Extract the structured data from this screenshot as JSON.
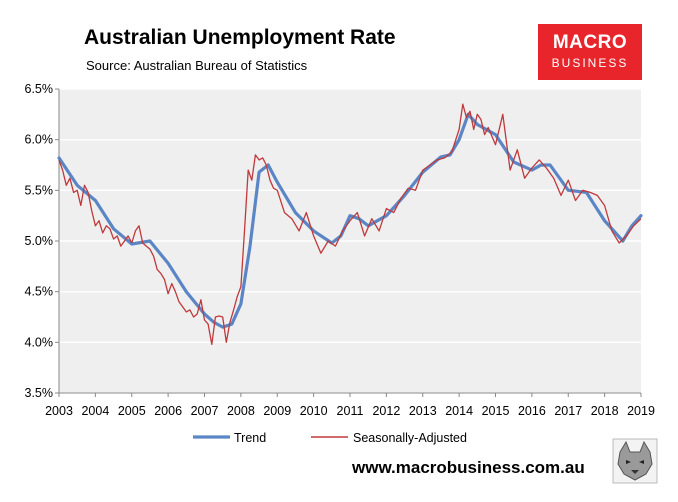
{
  "header": {
    "title": "Australian Unemployment Rate",
    "subtitle": "Source: Australian Bureau of Statistics"
  },
  "logo": {
    "line1": "MACRO",
    "line2": "BUSINESS",
    "color": "#e8252b"
  },
  "footer": {
    "website": "www.macrobusiness.com.au",
    "icon": "wolf-logo-icon"
  },
  "colors": {
    "trend": "#5b86c5",
    "seasonally_adjusted": "#c0393b",
    "plot_bg": "#efefef"
  },
  "chart_data": {
    "type": "line",
    "title": "Australian Unemployment Rate",
    "xlabel": "",
    "ylabel": "",
    "ylim": [
      3.5,
      6.5
    ],
    "xlim": [
      2003.0,
      2019.0
    ],
    "y_ticks": [
      "3.5%",
      "4.0%",
      "4.5%",
      "5.0%",
      "5.5%",
      "6.0%",
      "6.5%"
    ],
    "x_ticks": [
      "2003",
      "2004",
      "2005",
      "2006",
      "2007",
      "2008",
      "2009",
      "2010",
      "2011",
      "2012",
      "2013",
      "2014",
      "2015",
      "2016",
      "2017",
      "2018",
      "2019"
    ],
    "grid": "horizontal",
    "legend": "bottom",
    "series": [
      {
        "name": "Trend",
        "x": [
          2003.0,
          2003.5,
          2004.0,
          2004.5,
          2005.0,
          2005.5,
          2006.0,
          2006.5,
          2007.0,
          2007.25,
          2007.5,
          2007.75,
          2008.0,
          2008.25,
          2008.5,
          2008.75,
          2009.0,
          2009.5,
          2010.0,
          2010.5,
          2010.75,
          2011.0,
          2011.25,
          2011.5,
          2012.0,
          2012.5,
          2013.0,
          2013.5,
          2013.75,
          2014.0,
          2014.25,
          2014.5,
          2015.0,
          2015.5,
          2016.0,
          2016.25,
          2016.5,
          2017.0,
          2017.5,
          2018.0,
          2018.5,
          2018.75,
          2019.0
        ],
        "values": [
          5.82,
          5.55,
          5.4,
          5.12,
          4.97,
          5.0,
          4.78,
          4.5,
          4.28,
          4.2,
          4.15,
          4.18,
          4.38,
          4.95,
          5.68,
          5.75,
          5.58,
          5.28,
          5.1,
          4.98,
          5.05,
          5.25,
          5.22,
          5.15,
          5.25,
          5.45,
          5.68,
          5.83,
          5.85,
          6.0,
          6.25,
          6.15,
          6.05,
          5.78,
          5.7,
          5.75,
          5.75,
          5.5,
          5.48,
          5.2,
          5.0,
          5.15,
          5.25
        ]
      },
      {
        "name": "Seasonally-Adjusted",
        "x": [
          2003.0,
          2003.1,
          2003.2,
          2003.3,
          2003.4,
          2003.5,
          2003.6,
          2003.7,
          2003.8,
          2003.9,
          2004.0,
          2004.1,
          2004.2,
          2004.3,
          2004.4,
          2004.5,
          2004.6,
          2004.7,
          2004.8,
          2004.9,
          2005.0,
          2005.1,
          2005.2,
          2005.3,
          2005.4,
          2005.5,
          2005.6,
          2005.7,
          2005.8,
          2005.9,
          2006.0,
          2006.1,
          2006.2,
          2006.3,
          2006.4,
          2006.5,
          2006.6,
          2006.7,
          2006.8,
          2006.9,
          2007.0,
          2007.1,
          2007.2,
          2007.3,
          2007.4,
          2007.5,
          2007.6,
          2007.7,
          2007.8,
          2007.9,
          2008.0,
          2008.1,
          2008.2,
          2008.3,
          2008.4,
          2008.5,
          2008.6,
          2008.7,
          2008.8,
          2008.9,
          2009.0,
          2009.2,
          2009.4,
          2009.6,
          2009.8,
          2010.0,
          2010.2,
          2010.4,
          2010.6,
          2010.8,
          2011.0,
          2011.2,
          2011.4,
          2011.6,
          2011.8,
          2012.0,
          2012.2,
          2012.4,
          2012.6,
          2012.8,
          2013.0,
          2013.2,
          2013.4,
          2013.6,
          2013.8,
          2014.0,
          2014.1,
          2014.2,
          2014.3,
          2014.4,
          2014.5,
          2014.6,
          2014.7,
          2014.8,
          2015.0,
          2015.2,
          2015.4,
          2015.6,
          2015.8,
          2016.0,
          2016.2,
          2016.4,
          2016.6,
          2016.8,
          2017.0,
          2017.2,
          2017.4,
          2017.6,
          2017.8,
          2018.0,
          2018.2,
          2018.4,
          2018.6,
          2018.8,
          2019.0
        ],
        "values": [
          5.8,
          5.7,
          5.55,
          5.62,
          5.48,
          5.5,
          5.35,
          5.55,
          5.48,
          5.3,
          5.15,
          5.2,
          5.08,
          5.15,
          5.12,
          5.02,
          5.05,
          4.95,
          5.0,
          5.05,
          4.98,
          5.1,
          5.15,
          4.98,
          4.95,
          4.92,
          4.85,
          4.72,
          4.68,
          4.62,
          4.48,
          4.58,
          4.5,
          4.4,
          4.35,
          4.3,
          4.32,
          4.25,
          4.28,
          4.42,
          4.22,
          4.18,
          3.98,
          4.25,
          4.26,
          4.25,
          4.0,
          4.2,
          4.32,
          4.45,
          4.55,
          5.1,
          5.7,
          5.6,
          5.85,
          5.8,
          5.82,
          5.75,
          5.6,
          5.52,
          5.5,
          5.28,
          5.22,
          5.1,
          5.28,
          5.05,
          4.88,
          5.0,
          4.95,
          5.1,
          5.2,
          5.28,
          5.05,
          5.22,
          5.1,
          5.32,
          5.28,
          5.42,
          5.52,
          5.5,
          5.7,
          5.75,
          5.8,
          5.82,
          5.88,
          6.1,
          6.35,
          6.22,
          6.28,
          6.1,
          6.25,
          6.2,
          6.05,
          6.12,
          5.95,
          6.25,
          5.7,
          5.9,
          5.62,
          5.72,
          5.8,
          5.72,
          5.62,
          5.45,
          5.6,
          5.4,
          5.5,
          5.48,
          5.45,
          5.35,
          5.1,
          4.98,
          5.05,
          5.15,
          5.22
        ]
      }
    ]
  }
}
